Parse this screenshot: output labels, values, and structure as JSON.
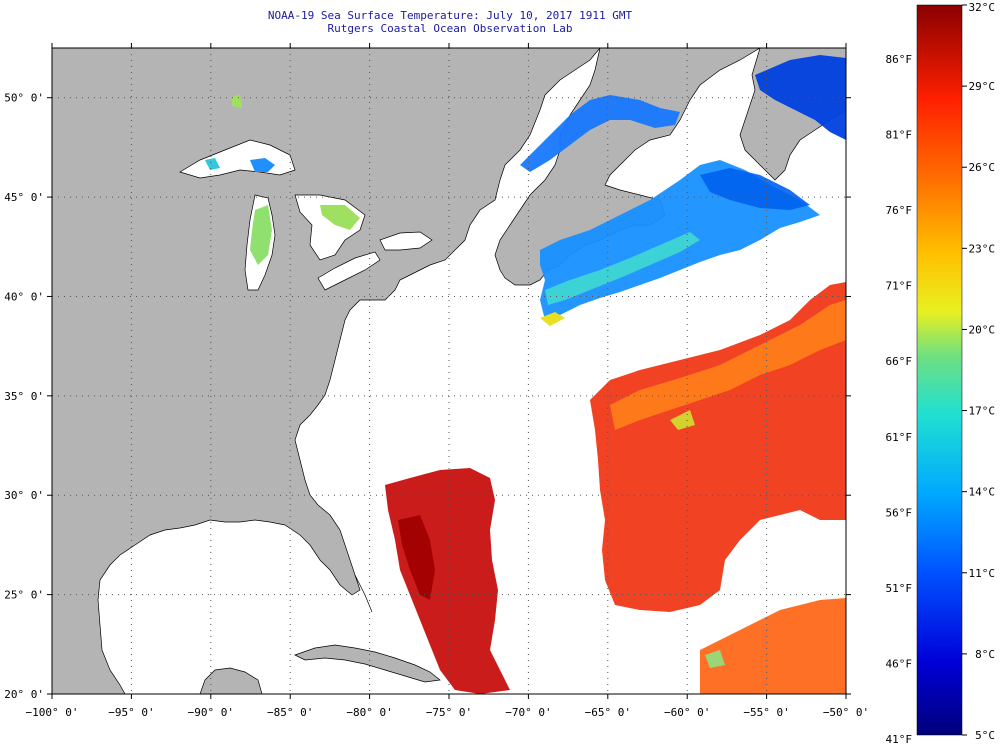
{
  "title": {
    "line1": "NOAA-19 Sea Surface Temperature:  July 10, 2017 1911 GMT",
    "line2": "Rutgers Coastal Ocean Observation Lab"
  },
  "map_data": {
    "lon_range": [
      -100,
      -50
    ],
    "lat_range": [
      20,
      52.5
    ],
    "lon_ticks": [
      {
        "value": -100,
        "label": "−100° 0'"
      },
      {
        "value": -95,
        "label": "−95° 0'"
      },
      {
        "value": -90,
        "label": "−90° 0'"
      },
      {
        "value": -85,
        "label": "−85° 0'"
      },
      {
        "value": -80,
        "label": "−80° 0'"
      },
      {
        "value": -75,
        "label": "−75° 0'"
      },
      {
        "value": -70,
        "label": "−70° 0'"
      },
      {
        "value": -65,
        "label": "−65° 0'"
      },
      {
        "value": -60,
        "label": "−60° 0'"
      },
      {
        "value": -55,
        "label": "−55° 0'"
      },
      {
        "value": -50,
        "label": "−50° 0'"
      }
    ],
    "lat_ticks": [
      {
        "value": 20,
        "label": "20° 0'"
      },
      {
        "value": 25,
        "label": "25° 0'"
      },
      {
        "value": 30,
        "label": "30° 0'"
      },
      {
        "value": 35,
        "label": "35° 0'"
      },
      {
        "value": 40,
        "label": "40° 0'"
      },
      {
        "value": 45,
        "label": "45° 0'"
      },
      {
        "value": 50,
        "label": "50° 0'"
      }
    ],
    "colors": {
      "land": "#b4b4b4",
      "ocean_nodata": "#ffffff",
      "gridline": "#555555",
      "coast": "#000000"
    }
  },
  "colorbar": {
    "celsius_range": [
      5,
      32
    ],
    "celsius_labels": [
      "32°C",
      "29°C",
      "26°C",
      "23°C",
      "20°C",
      "17°C",
      "14°C",
      "11°C",
      "8°C",
      "5°C"
    ],
    "fahrenheit_labels": [
      "86°F",
      "81°F",
      "76°F",
      "71°F",
      "66°F",
      "61°F",
      "56°F",
      "51°F",
      "46°F",
      "41°F"
    ],
    "palette": [
      "#00007a",
      "#0000d0",
      "#0030ff",
      "#0080ff",
      "#00c8f0",
      "#30e0c0",
      "#90e070",
      "#e8f020",
      "#ffc000",
      "#ff8000",
      "#ff3000",
      "#e00000",
      "#900000"
    ]
  }
}
